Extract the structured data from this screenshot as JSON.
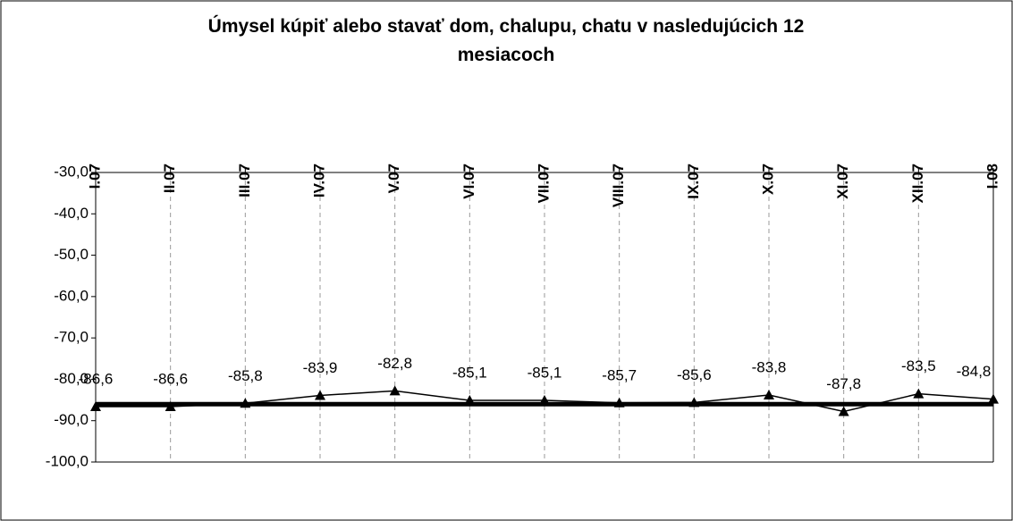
{
  "chart_data": {
    "type": "line",
    "title": "Úmysel kúpiť alebo stavať dom, chalupu, chatu v nasledujúcich 12 mesiacoch",
    "categories": [
      "I.07",
      "II.07",
      "III.07",
      "IV.07",
      "V.07",
      "VI.07",
      "VII.07",
      "VIII.07",
      "IX.07",
      "X.07",
      "XI.07",
      "XII.07",
      "I.08"
    ],
    "values": [
      -86.6,
      -86.6,
      -85.8,
      -83.9,
      -82.8,
      -85.1,
      -85.1,
      -85.7,
      -85.6,
      -83.8,
      -87.8,
      -83.5,
      -84.8
    ],
    "value_labels": [
      "-86,6",
      "-86,6",
      "-85,8",
      "-83,9",
      "-82,8",
      "-85,1",
      "-85,1",
      "-85,7",
      "-85,6",
      "-83,8",
      "-87,8",
      "-83,5",
      "-84,8"
    ],
    "color": "#000000",
    "reference_line": -86,
    "ylim": [
      -100,
      -30
    ],
    "yticks": [
      {
        "value": -30,
        "label": "-30,0"
      },
      {
        "value": -40,
        "label": "-40,0"
      },
      {
        "value": -50,
        "label": "-50,0"
      },
      {
        "value": -60,
        "label": "-60,0"
      },
      {
        "value": -70,
        "label": "-70,0"
      },
      {
        "value": -80,
        "label": "-80,0"
      },
      {
        "value": -90,
        "label": "-90,0"
      },
      {
        "value": -100,
        "label": "-100,0"
      }
    ],
    "grid": true
  }
}
